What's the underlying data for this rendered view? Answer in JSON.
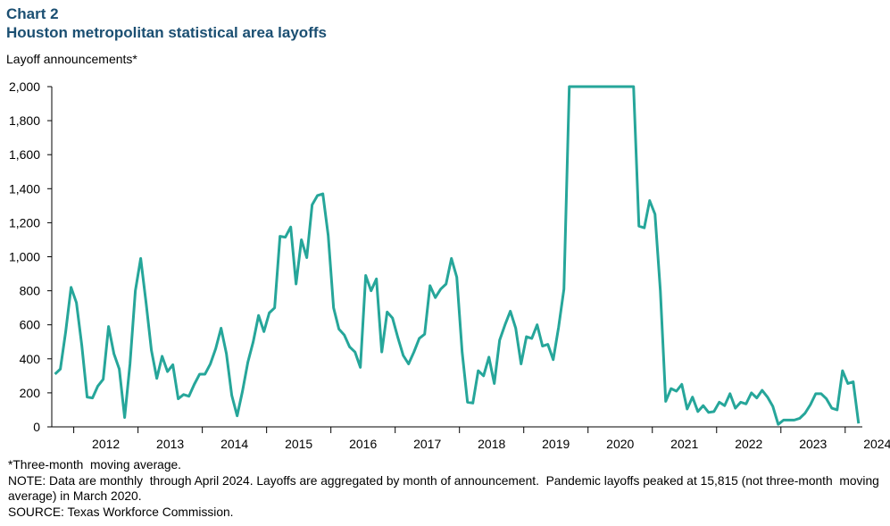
{
  "header": {
    "chart_number": "Chart 2",
    "title": "Houston metropolitan statistical area layoffs",
    "y_unit_label": "Layoff announcements*"
  },
  "colors": {
    "line": "#26a69a",
    "axis": "#000000",
    "title": "#1b4f72"
  },
  "chart_data": {
    "type": "line",
    "title": "Houston metropolitan statistical area layoffs",
    "ylabel": "Layoff announcements*",
    "xlabel": "",
    "ylim": [
      0,
      2000
    ],
    "y_ticks": [
      0,
      200,
      400,
      600,
      800,
      1000,
      1200,
      1400,
      1600,
      1800,
      2000
    ],
    "y_tick_labels": [
      "0",
      "200",
      "400",
      "600",
      "800",
      "1,000",
      "1,200",
      "1,400",
      "1,600",
      "1,800",
      "2,000"
    ],
    "x_tick_labels": [
      "2012",
      "2013",
      "2014",
      "2015",
      "2016",
      "2017",
      "2018",
      "2019",
      "2020",
      "2021",
      "2022",
      "2023",
      "2024"
    ],
    "x_start": "2011-09",
    "x_end": "2024-04",
    "grid": false,
    "legend": "none",
    "clipped_at_top": true,
    "series": [
      {
        "values": [
          310,
          340,
          560,
          820,
          730,
          480,
          175,
          170,
          240,
          280,
          590,
          430,
          340,
          55,
          370,
          800,
          990,
          730,
          450,
          285,
          415,
          325,
          365,
          165,
          190,
          180,
          250,
          310,
          310,
          370,
          460,
          580,
          430,
          185,
          65,
          210,
          380,
          500,
          655,
          560,
          670,
          700,
          1120,
          1115,
          1175,
          840,
          1100,
          995,
          1305,
          1360,
          1370,
          1125,
          700,
          575,
          540,
          470,
          440,
          350,
          890,
          800,
          870,
          440,
          675,
          640,
          525,
          420,
          370,
          440,
          520,
          545,
          830,
          760,
          810,
          840,
          990,
          880,
          440,
          145,
          140,
          330,
          300,
          410,
          255,
          510,
          600,
          680,
          580,
          370,
          530,
          520,
          600,
          475,
          485,
          395,
          585,
          810,
          2000,
          2000,
          2000,
          2000,
          2000,
          2000,
          2000,
          2000,
          2000,
          2000,
          2000,
          2000,
          2000,
          1180,
          1170,
          1330,
          1250,
          800,
          150,
          225,
          210,
          250,
          105,
          175,
          90,
          125,
          85,
          90,
          145,
          125,
          195,
          110,
          145,
          135,
          200,
          170,
          215,
          175,
          120,
          15,
          40,
          40,
          40,
          50,
          80,
          130,
          195,
          195,
          165,
          110,
          100,
          330,
          255,
          265,
          20
        ]
      }
    ]
  },
  "notes": {
    "footnote": "*Three-month  moving average.",
    "note": "NOTE: Data are monthly  through April 2024. Layoffs are aggregated by month of announcement.  Pandemic layoffs peaked at 15,815 (not three-month  moving average) in March 2020.",
    "source": "SOURCE: Texas Workforce Commission."
  }
}
